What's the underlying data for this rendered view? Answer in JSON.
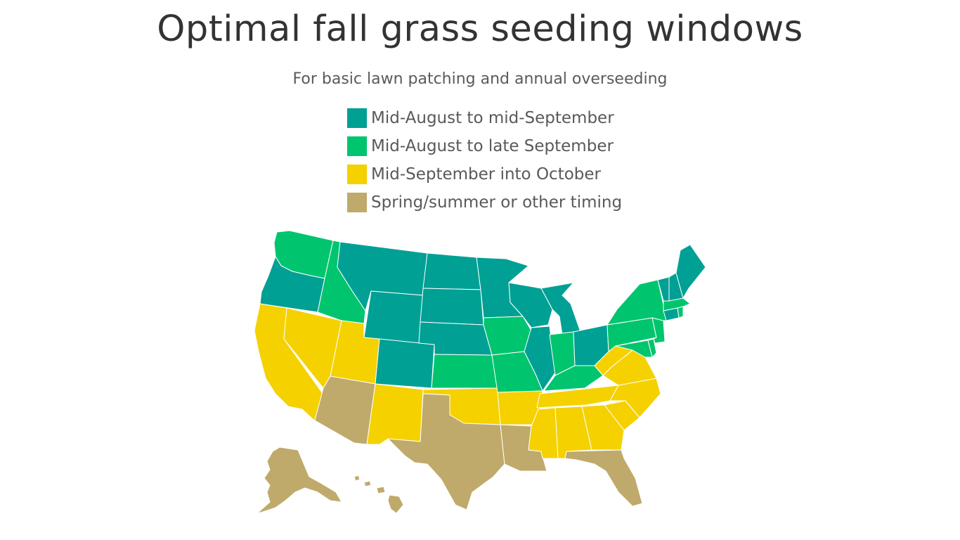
{
  "title": "Optimal fall grass seeding windows",
  "subtitle": "For basic lawn patching and annual overseeding",
  "colors": {
    "teal": "#00a094",
    "green": "#00c56e",
    "yellow": "#f5d100",
    "tan": "#bfaa6b"
  },
  "legend": [
    {
      "label": "Mid-August to mid-September",
      "color_key": "teal"
    },
    {
      "label": "Mid-August to late September",
      "color_key": "green"
    },
    {
      "label": "Mid-September into October",
      "color_key": "yellow"
    },
    {
      "label": "Spring/summer or other timing",
      "color_key": "tan"
    }
  ]
}
